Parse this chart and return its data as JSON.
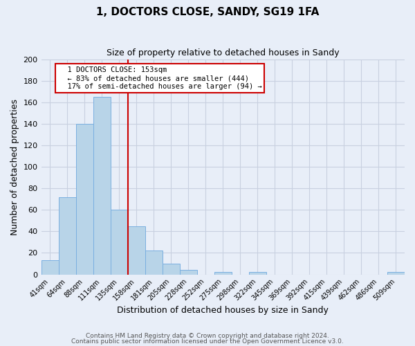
{
  "title": "1, DOCTORS CLOSE, SANDY, SG19 1FA",
  "subtitle": "Size of property relative to detached houses in Sandy",
  "xlabel": "Distribution of detached houses by size in Sandy",
  "ylabel": "Number of detached properties",
  "bar_labels": [
    "41sqm",
    "64sqm",
    "88sqm",
    "111sqm",
    "135sqm",
    "158sqm",
    "181sqm",
    "205sqm",
    "228sqm",
    "252sqm",
    "275sqm",
    "298sqm",
    "322sqm",
    "345sqm",
    "369sqm",
    "392sqm",
    "415sqm",
    "439sqm",
    "462sqm",
    "486sqm",
    "509sqm"
  ],
  "bar_values": [
    13,
    72,
    140,
    165,
    60,
    45,
    22,
    10,
    4,
    0,
    2,
    0,
    2,
    0,
    0,
    0,
    0,
    0,
    0,
    0,
    2
  ],
  "bar_color": "#b8d4e8",
  "bar_edge_color": "#7aafe0",
  "vline_color": "#cc0000",
  "annotation_title": "1 DOCTORS CLOSE: 153sqm",
  "annotation_line1": "← 83% of detached houses are smaller (444)",
  "annotation_line2": "17% of semi-detached houses are larger (94) →",
  "annotation_box_color": "#ffffff",
  "annotation_box_edge": "#cc0000",
  "ylim": [
    0,
    200
  ],
  "yticks": [
    0,
    20,
    40,
    60,
    80,
    100,
    120,
    140,
    160,
    180,
    200
  ],
  "footer1": "Contains HM Land Registry data © Crown copyright and database right 2024.",
  "footer2": "Contains public sector information licensed under the Open Government Licence v3.0.",
  "bg_color": "#e8eef8",
  "grid_color": "#c8d0e0"
}
